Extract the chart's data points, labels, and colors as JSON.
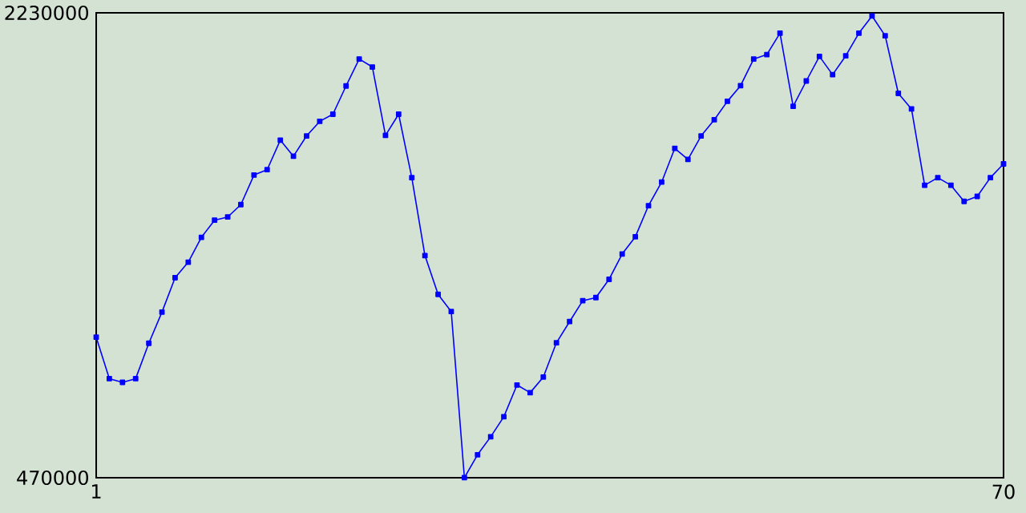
{
  "chart_data": {
    "type": "line",
    "x": [
      1,
      2,
      3,
      4,
      5,
      6,
      7,
      8,
      9,
      10,
      11,
      12,
      13,
      14,
      15,
      16,
      17,
      18,
      19,
      20,
      21,
      22,
      23,
      24,
      25,
      26,
      27,
      28,
      29,
      30,
      31,
      32,
      33,
      34,
      35,
      36,
      37,
      38,
      39,
      40,
      41,
      42,
      43,
      44,
      45,
      46,
      47,
      48,
      49,
      50,
      51,
      52,
      53,
      54,
      55,
      56,
      57,
      58,
      59,
      60,
      61,
      62,
      63,
      64,
      65,
      66,
      67,
      68,
      69,
      70
    ],
    "series": [
      {
        "color": "#0000ff",
        "values": [
          1002000,
          845000,
          831000,
          845000,
          979000,
          1097000,
          1227000,
          1286000,
          1380000,
          1445000,
          1457000,
          1504000,
          1616000,
          1636000,
          1748000,
          1687000,
          1764000,
          1819000,
          1846000,
          1953000,
          2055000,
          2025000,
          1766000,
          1846000,
          1606000,
          1311000,
          1164000,
          1099000,
          470000,
          557000,
          625000,
          701000,
          821000,
          792000,
          851000,
          981000,
          1061000,
          1140000,
          1152000,
          1221000,
          1317000,
          1382000,
          1500000,
          1589000,
          1717000,
          1675000,
          1764000,
          1825000,
          1895000,
          1954000,
          2055000,
          2072000,
          2153000,
          1876000,
          1972000,
          2065000,
          1996000,
          2067000,
          2153000,
          2218000,
          2143000,
          1925000,
          1866000,
          1577000,
          1606000,
          1577000,
          1516000,
          1535000,
          1606000,
          1658000
        ]
      }
    ],
    "xlim": [
      1,
      70
    ],
    "ylim": [
      470000,
      2230000
    ],
    "xticks": [
      1,
      70
    ],
    "yticks": [
      470000,
      2230000
    ],
    "marker": "square",
    "line_style": "solid"
  }
}
